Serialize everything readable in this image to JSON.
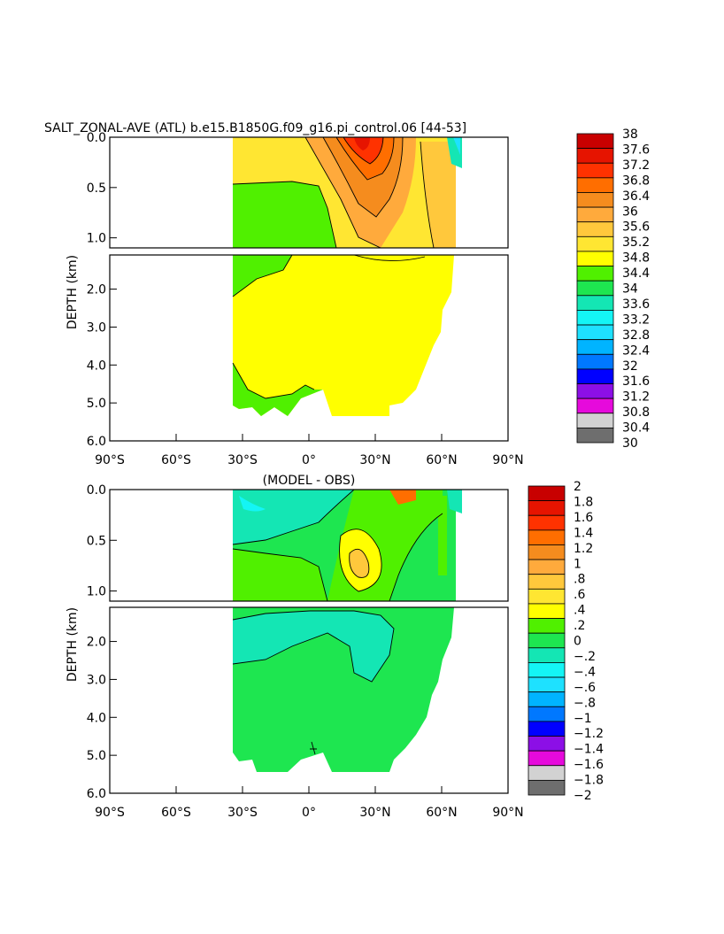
{
  "chart_data": [
    {
      "type": "heatmap",
      "title": "SALT_ZONAL-AVE (ATL) b.e15.B1850G.f09_g16.pi_control.06 [44-53]",
      "ylabel": "DEPTH (km)",
      "xlabel": "",
      "xlim": [
        -90,
        90
      ],
      "ylim": [
        6.0,
        0.0
      ],
      "upper_panel_depth": [
        0.0,
        1.1
      ],
      "lower_panel_depth": [
        1.1,
        6.0
      ],
      "xticks": [
        -90,
        -60,
        -30,
        0,
        30,
        60,
        90
      ],
      "xtick_labels": [
        "90°S",
        "60°S",
        "30°S",
        "0°",
        "30°N",
        "60°N",
        "90°N"
      ],
      "upper_ytick_labels": [
        "0.0",
        "0.5",
        "1.0"
      ],
      "upper_ytick_values": [
        0.0,
        0.5,
        1.0
      ],
      "lower_ytick_labels": [
        "2.0",
        "3.0",
        "4.0",
        "5.0",
        "6.0"
      ],
      "lower_ytick_values": [
        2.0,
        3.0,
        4.0,
        5.0,
        6.0
      ],
      "colorbar_labels": [
        "38",
        "37.6",
        "37.2",
        "36.8",
        "36.4",
        "36",
        "35.6",
        "35.2",
        "34.8",
        "34.4",
        "34",
        "33.6",
        "33.2",
        "32.8",
        "32.4",
        "32",
        "31.6",
        "31.2",
        "30.8",
        "30.4",
        "30"
      ],
      "colorbar_colors": [
        "#c80000",
        "#e61400",
        "#ff3200",
        "#ff6e00",
        "#f58c1e",
        "#ffaa3c",
        "#ffc83c",
        "#ffe632",
        "#ffff00",
        "#50f000",
        "#1ee650",
        "#14e6b4",
        "#14f5f5",
        "#1ee1ff",
        "#00b4ff",
        "#0078ff",
        "#0000ff",
        "#8c0fe6",
        "#e60adc",
        "#d2d2d2",
        "#6e6e6e"
      ],
      "regions": {
        "lon_west": -34,
        "lon_east": 65,
        "fresh_column_east_lon": 10,
        "fresh_column_depth": 0.45,
        "max_salt_core_lon": 25,
        "max_salt_value": 37.6,
        "bottom_band_depth": 4.7
      }
    },
    {
      "type": "heatmap",
      "title": "(MODEL - OBS)",
      "ylabel": "DEPTH (km)",
      "xlabel": "",
      "xlim": [
        -90,
        90
      ],
      "ylim": [
        6.0,
        0.0
      ],
      "upper_panel_depth": [
        0.0,
        1.1
      ],
      "lower_panel_depth": [
        1.1,
        6.0
      ],
      "xticks": [
        -90,
        -60,
        -30,
        0,
        30,
        60,
        90
      ],
      "xtick_labels": [
        "90°S",
        "60°S",
        "30°S",
        "0°",
        "30°N",
        "60°N",
        "90°N"
      ],
      "upper_ytick_labels": [
        "0.0",
        "0.5",
        "1.0"
      ],
      "upper_ytick_values": [
        0.0,
        0.5,
        1.0
      ],
      "lower_ytick_labels": [
        "2.0",
        "3.0",
        "4.0",
        "5.0",
        "6.0"
      ],
      "lower_ytick_values": [
        2.0,
        3.0,
        4.0,
        5.0,
        6.0
      ],
      "colorbar_labels": [
        "2",
        "1.8",
        "1.6",
        "1.4",
        "1.2",
        "1",
        ".8",
        ".6",
        ".4",
        ".2",
        "0",
        "−.2",
        "−.4",
        "−.6",
        "−.8",
        "−1",
        "−1.2",
        "−1.4",
        "−1.6",
        "−1.8",
        "−2"
      ],
      "colorbar_colors": [
        "#c80000",
        "#e61400",
        "#ff3200",
        "#ff6e00",
        "#f58c1e",
        "#ffaa3c",
        "#ffc83c",
        "#ffe632",
        "#ffff00",
        "#50f000",
        "#1ee650",
        "#14e6b4",
        "#14f5f5",
        "#1ee1ff",
        "#00b4ff",
        "#0078ff",
        "#0000ff",
        "#8c0fe6",
        "#e60adc",
        "#d2d2d2",
        "#6e6e6e"
      ],
      "regions": {
        "lon_west": -34,
        "lon_east": 65,
        "positive_core_lon": 20,
        "positive_core_value": 0.6,
        "intermediate_negative_depth": [
          1.2,
          2.0
        ]
      }
    }
  ]
}
